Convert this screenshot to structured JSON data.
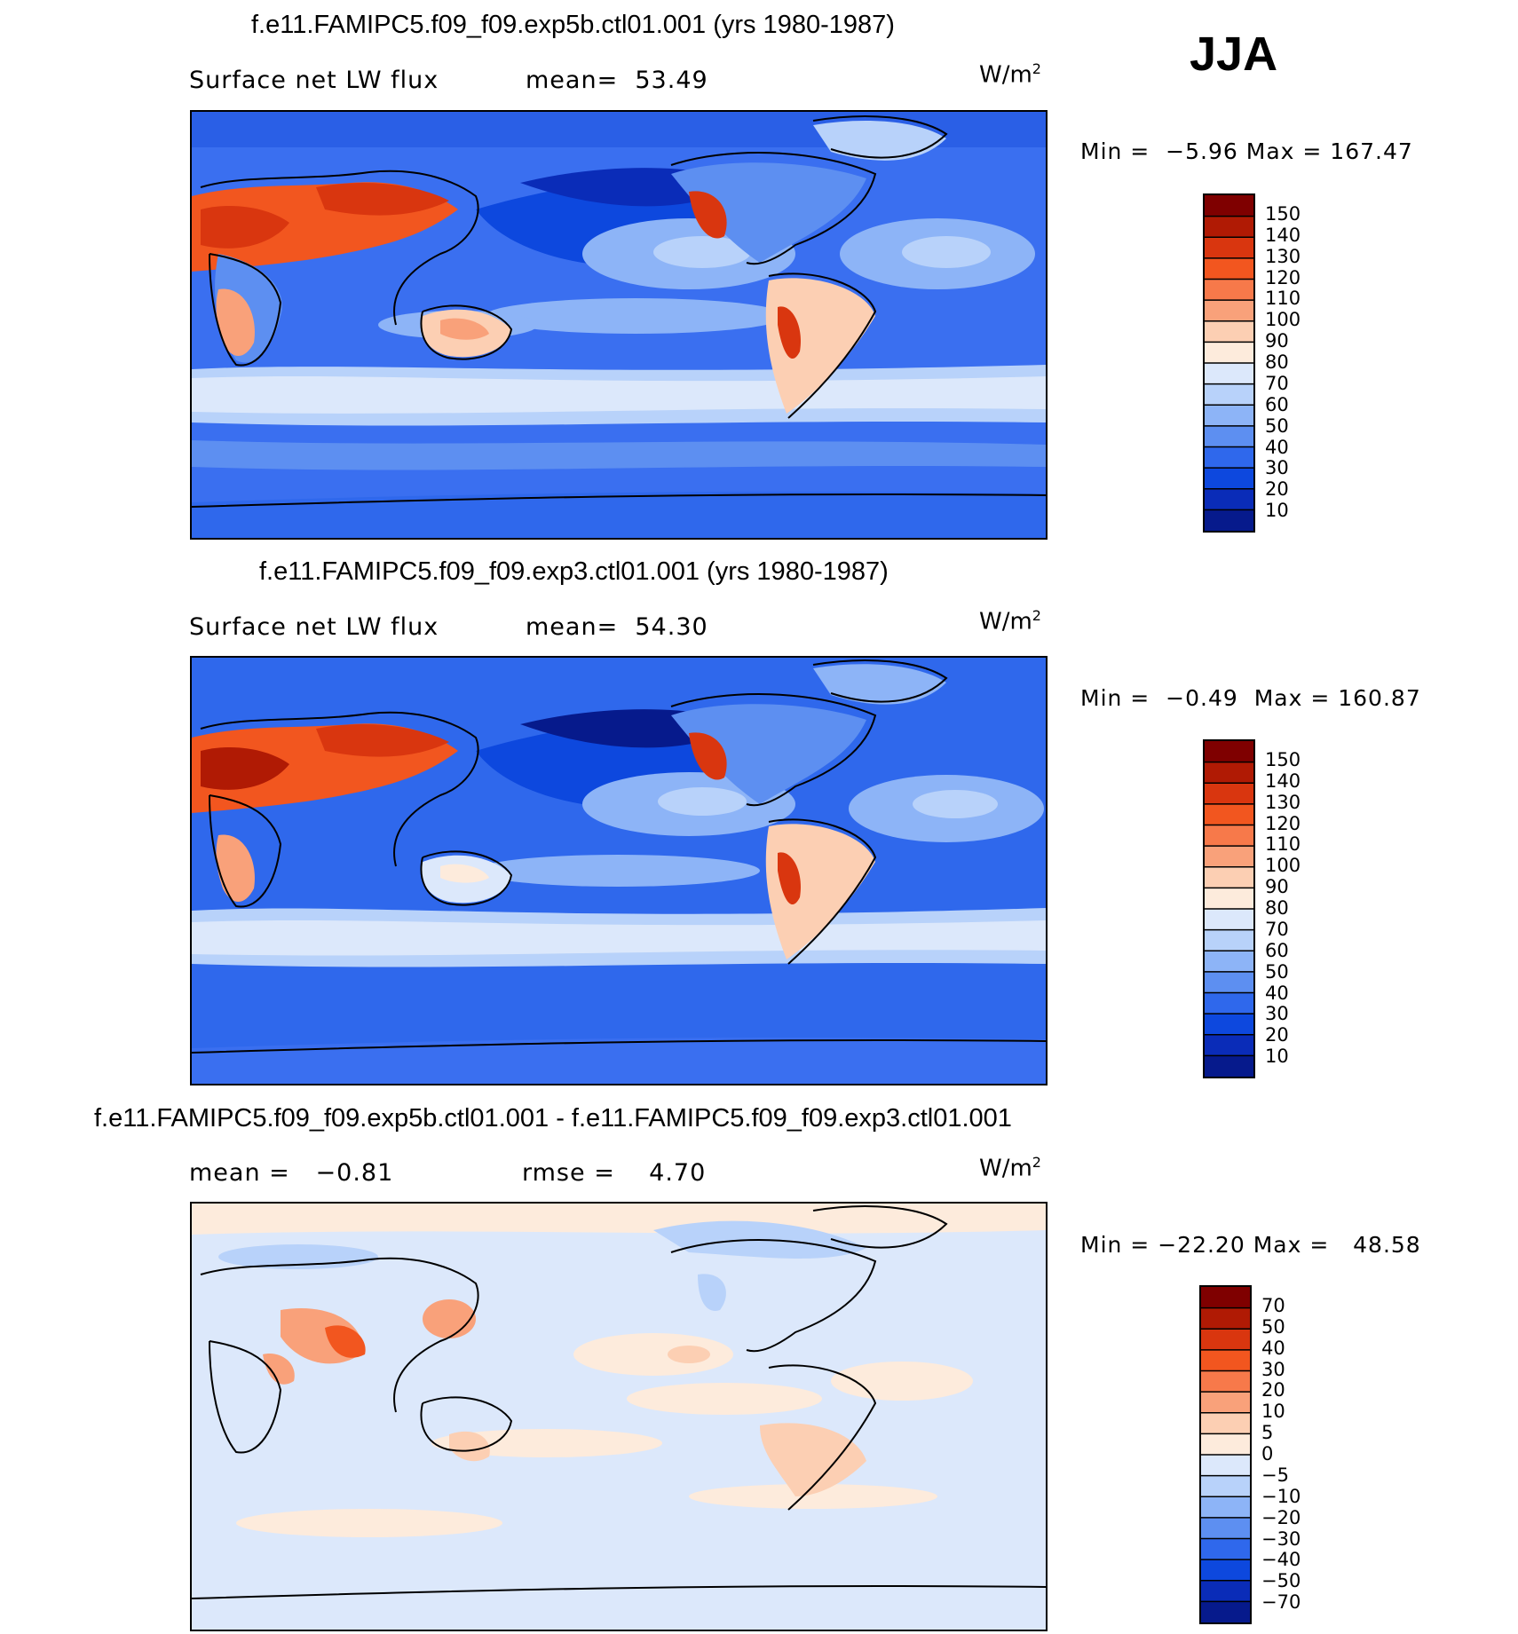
{
  "season": "JJA",
  "panels": [
    {
      "title": "f.e11.FAMIPC5.f09_f09.exp5b.ctl01.001 (yrs 1980-1987)",
      "variable": "Surface net LW flux",
      "stat1_label": "mean=",
      "stat1_value": "53.49",
      "stat2_label": "",
      "stat2_value": "",
      "unit": "W/m",
      "unit_exp": "2",
      "min_label": "Min =",
      "min_value": "−5.96",
      "max_label": "Max =",
      "max_value": "167.47",
      "colorbar": {
        "labels": [
          "150",
          "140",
          "130",
          "120",
          "110",
          "100",
          "90",
          "80",
          "70",
          "60",
          "50",
          "40",
          "30",
          "20",
          "10"
        ],
        "colors": [
          "#7f0000",
          "#b01a04",
          "#d9360f",
          "#f2561f",
          "#f7794a",
          "#f9a17a",
          "#fccfb3",
          "#fdebdc",
          "#dce8fb",
          "#b8d2fa",
          "#8db4f7",
          "#5d8ff1",
          "#2f68ec",
          "#0d48de",
          "#0a2cb8",
          "#061a8c"
        ]
      }
    },
    {
      "title": "f.e11.FAMIPC5.f09_f09.exp3.ctl01.001 (yrs 1980-1987)",
      "variable": "Surface net LW flux",
      "stat1_label": "mean=",
      "stat1_value": "54.30",
      "stat2_label": "",
      "stat2_value": "",
      "unit": "W/m",
      "unit_exp": "2",
      "min_label": "Min =",
      "min_value": "−0.49",
      "max_label": "Max =",
      "max_value": "160.87",
      "colorbar": {
        "labels": [
          "150",
          "140",
          "130",
          "120",
          "110",
          "100",
          "90",
          "80",
          "70",
          "60",
          "50",
          "40",
          "30",
          "20",
          "10"
        ],
        "colors": [
          "#7f0000",
          "#b01a04",
          "#d9360f",
          "#f2561f",
          "#f7794a",
          "#f9a17a",
          "#fccfb3",
          "#fdebdc",
          "#dce8fb",
          "#b8d2fa",
          "#8db4f7",
          "#5d8ff1",
          "#2f68ec",
          "#0d48de",
          "#0a2cb8",
          "#061a8c"
        ]
      }
    },
    {
      "title": "f.e11.FAMIPC5.f09_f09.exp5b.ctl01.001 - f.e11.FAMIPC5.f09_f09.exp3.ctl01.001",
      "variable": "",
      "stat1_label": "mean =",
      "stat1_value": "−0.81",
      "stat2_label": "rmse =",
      "stat2_value": "4.70",
      "unit": "W/m",
      "unit_exp": "2",
      "min_label": "Min =",
      "min_value": "−22.20",
      "max_label": "Max =",
      "max_value": "48.58",
      "colorbar": {
        "labels": [
          "70",
          "50",
          "40",
          "30",
          "20",
          "10",
          "5",
          "0",
          "−5",
          "−10",
          "−20",
          "−30",
          "−40",
          "−50",
          "−70"
        ],
        "colors": [
          "#7f0000",
          "#b01a04",
          "#d9360f",
          "#f2561f",
          "#f7794a",
          "#f9a17a",
          "#fccfb3",
          "#fdebdc",
          "#dce8fb",
          "#b8d2fa",
          "#8db4f7",
          "#5d8ff1",
          "#2f68ec",
          "#0d48de",
          "#0a2cb8",
          "#061a8c"
        ]
      }
    }
  ]
}
